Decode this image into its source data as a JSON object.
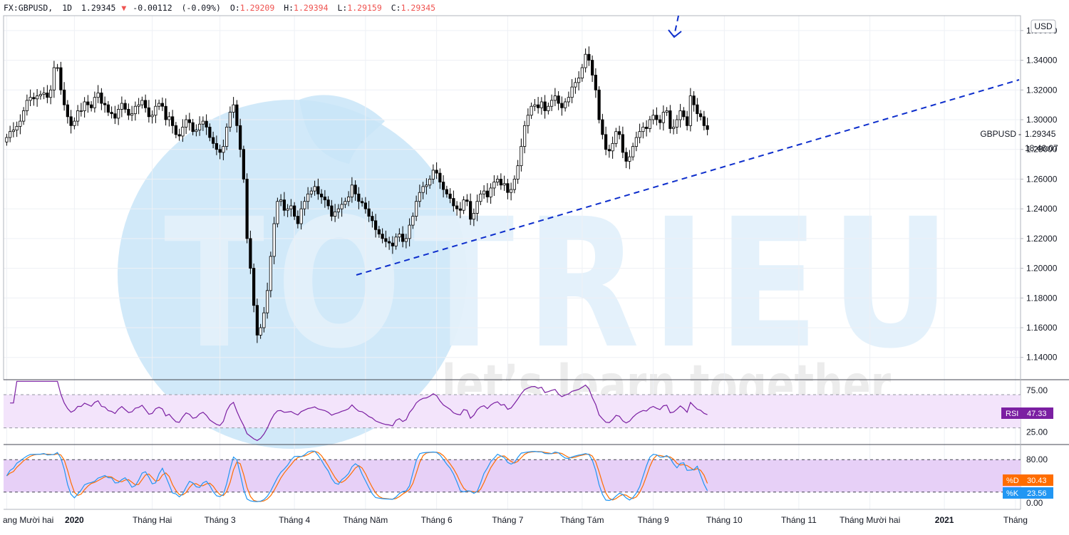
{
  "header": {
    "symbol": "FX:GBPUSD,",
    "interval": "1D",
    "last": "1.29345",
    "change": "-0.00112",
    "change_pct": "(-0.09%)",
    "o_label": "O:",
    "o_value": "1.29209",
    "h_label": "H:",
    "h_value": "1.29394",
    "l_label": "L:",
    "l_value": "1.29159",
    "c_label": "C:",
    "c_value": "1.29345",
    "down_color": "#ef5350",
    "down_arrow_icon": "triangle-down-icon"
  },
  "currency_button": "USD",
  "price_tag": {
    "label": "GBPUSD",
    "value": "1.29345",
    "countdown": "18:46:07"
  },
  "watermark": {
    "logo_text": "TOTRIEU",
    "tagline": "let’s learn together",
    "color": "#bfe0f7"
  },
  "chart_data": [
    {
      "type": "candlestick",
      "name": "GBPUSD",
      "y_ticks": [
        "1.36000",
        "1.34000",
        "1.32000",
        "1.30000",
        "1.28000",
        "1.26000",
        "1.24000",
        "1.22000",
        "1.20000",
        "1.18000",
        "1.16000",
        "1.14000"
      ],
      "ylim": [
        1.125,
        1.37
      ],
      "x_labels": [
        {
          "label": "ang Mười hai",
          "index": 0
        },
        {
          "label": "2020",
          "index": 20,
          "bold": true
        },
        {
          "label": "Tháng Hai",
          "index": 43
        },
        {
          "label": "Tháng 3",
          "index": 63
        },
        {
          "label": "Tháng 4",
          "index": 85
        },
        {
          "label": "Tháng Năm",
          "index": 106
        },
        {
          "label": "Tháng 6",
          "index": 127
        },
        {
          "label": "Tháng 7",
          "index": 148
        },
        {
          "label": "Tháng Tám",
          "index": 170
        },
        {
          "label": "Tháng 9",
          "index": 191
        },
        {
          "label": "Tháng 10",
          "index": 212
        },
        {
          "label": "Tháng 11",
          "index": 234
        },
        {
          "label": "Tháng Mười hai",
          "index": 255
        },
        {
          "label": "2021",
          "index": 277,
          "bold": true
        },
        {
          "label": "Tháng",
          "index": 298
        }
      ],
      "x_count": 300,
      "closes": [
        1.288,
        1.292,
        1.293,
        1.2955,
        1.299,
        1.306,
        1.313,
        1.315,
        1.314,
        1.316,
        1.317,
        1.318,
        1.315,
        1.32,
        1.335,
        1.335,
        1.32,
        1.31,
        1.302,
        1.296,
        1.299,
        1.306,
        1.306,
        1.312,
        1.31,
        1.308,
        1.315,
        1.318,
        1.311,
        1.31,
        1.305,
        1.304,
        1.301,
        1.307,
        1.311,
        1.307,
        1.303,
        1.304,
        1.309,
        1.31,
        1.313,
        1.308,
        1.302,
        1.303,
        1.309,
        1.311,
        1.309,
        1.3,
        1.302,
        1.296,
        1.29,
        1.289,
        1.295,
        1.3,
        1.298,
        1.292,
        1.293,
        1.297,
        1.299,
        1.295,
        1.288,
        1.284,
        1.28,
        1.278,
        1.282,
        1.295,
        1.305,
        1.31,
        1.296,
        1.28,
        1.26,
        1.22,
        1.2,
        1.175,
        1.155,
        1.16,
        1.17,
        1.185,
        1.208,
        1.23,
        1.245,
        1.246,
        1.239,
        1.24,
        1.242,
        1.235,
        1.23,
        1.24,
        1.245,
        1.25,
        1.252,
        1.255,
        1.25,
        1.248,
        1.246,
        1.242,
        1.235,
        1.238,
        1.24,
        1.243,
        1.245,
        1.248,
        1.256,
        1.25,
        1.245,
        1.244,
        1.24,
        1.235,
        1.232,
        1.226,
        1.223,
        1.22,
        1.218,
        1.217,
        1.215,
        1.221,
        1.223,
        1.218,
        1.22,
        1.229,
        1.235,
        1.245,
        1.251,
        1.255,
        1.256,
        1.26,
        1.266,
        1.264,
        1.258,
        1.253,
        1.25,
        1.247,
        1.242,
        1.24,
        1.239,
        1.246,
        1.245,
        1.233,
        1.237,
        1.245,
        1.25,
        1.252,
        1.248,
        1.254,
        1.258,
        1.26,
        1.256,
        1.257,
        1.251,
        1.253,
        1.26,
        1.269,
        1.282,
        1.296,
        1.303,
        1.309,
        1.31,
        1.308,
        1.312,
        1.306,
        1.309,
        1.313,
        1.316,
        1.311,
        1.308,
        1.312,
        1.315,
        1.322,
        1.325,
        1.328,
        1.335,
        1.344,
        1.34,
        1.33,
        1.32,
        1.3,
        1.29,
        1.28,
        1.279,
        1.284,
        1.292,
        1.29,
        1.278,
        1.272,
        1.275,
        1.282,
        1.288,
        1.292,
        1.295,
        1.294,
        1.3,
        1.303,
        1.3,
        1.298,
        1.305,
        1.306,
        1.294,
        1.295,
        1.3,
        1.306,
        1.302,
        1.296,
        1.316,
        1.31,
        1.304,
        1.302,
        1.296,
        1.2934
      ]
    },
    {
      "type": "line",
      "name": "RSI",
      "label": "RSI",
      "value": "47.33",
      "y_ticks": [
        "75.00",
        "25.00"
      ],
      "ylim": [
        10,
        88
      ],
      "band": [
        30,
        70
      ],
      "color": "#7b1fa2",
      "band_color": "#f3e4fb"
    },
    {
      "type": "line",
      "name": "Stochastic",
      "y_ticks": [
        "80.00",
        "0.00"
      ],
      "ylim": [
        -12,
        108
      ],
      "band": [
        20,
        80
      ],
      "band_color": "#e7d0f7",
      "series": [
        {
          "name": "%D",
          "value": "30.43",
          "color": "#ff6d00"
        },
        {
          "name": "%K",
          "value": "23.56",
          "color": "#2196f3"
        }
      ]
    }
  ],
  "colors": {
    "up": "#ffffff",
    "down": "#000000",
    "wick": "#000000",
    "trendline": "#0d2ecc",
    "rsi_badge": "#7b1fa2",
    "d_badge": "#ff6d00",
    "k_badge": "#2196f3"
  }
}
